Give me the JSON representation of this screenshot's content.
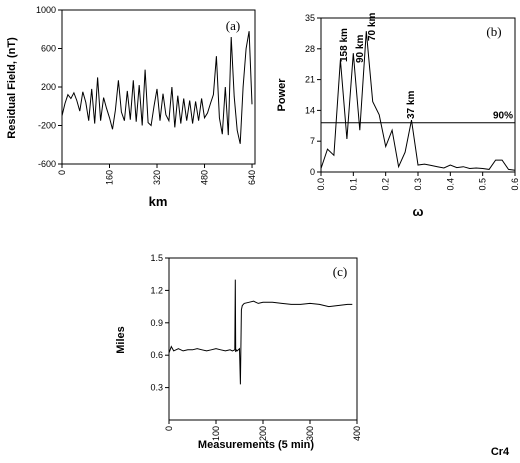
{
  "chart_data": [
    {
      "panel": "(a)",
      "type": "line",
      "xlabel": "km",
      "ylabel": "Residual Field, (nT)",
      "xlim": [
        0,
        650
      ],
      "ylim": [
        -600,
        1000
      ],
      "xticks": [
        "0",
        "160",
        "320",
        "480",
        "640"
      ],
      "yticks": [
        "-600",
        "-200",
        "200",
        "600",
        "1000"
      ],
      "x": [
        0,
        10,
        20,
        30,
        40,
        50,
        60,
        70,
        80,
        90,
        100,
        110,
        120,
        130,
        140,
        150,
        160,
        170,
        180,
        190,
        200,
        210,
        220,
        230,
        240,
        250,
        260,
        270,
        280,
        290,
        300,
        310,
        320,
        330,
        340,
        350,
        360,
        370,
        380,
        390,
        400,
        410,
        420,
        430,
        440,
        450,
        460,
        470,
        480,
        490,
        500,
        510,
        520,
        530,
        540,
        550,
        560,
        570,
        580,
        590,
        600,
        610,
        620,
        630,
        640
      ],
      "y": [
        -100,
        30,
        120,
        80,
        140,
        60,
        -50,
        150,
        40,
        -150,
        180,
        -180,
        300,
        -150,
        90,
        -20,
        -120,
        -240,
        -40,
        270,
        -60,
        -150,
        160,
        -140,
        270,
        -160,
        220,
        -200,
        380,
        -170,
        -200,
        0,
        180,
        -150,
        130,
        -90,
        -150,
        200,
        -220,
        110,
        -180,
        80,
        -150,
        60,
        -180,
        50,
        -150,
        80,
        -120,
        -70,
        30,
        120,
        520,
        -120,
        -290,
        200,
        -300,
        720,
        100,
        -250,
        -390,
        200,
        600,
        780,
        20
      ]
    },
    {
      "panel": "(b)",
      "type": "line",
      "xlabel": "ω",
      "ylabel": "Power",
      "xlim": [
        0,
        0.6
      ],
      "ylim": [
        0,
        35
      ],
      "xticks": [
        "0.0",
        "0.1",
        "0.2",
        "0.3",
        "0.4",
        "0.5",
        "0.6"
      ],
      "yticks": [
        "0",
        "7",
        "14",
        "21",
        "28",
        "35"
      ],
      "x": [
        0,
        0.02,
        0.04,
        0.06,
        0.08,
        0.1,
        0.12,
        0.14,
        0.16,
        0.18,
        0.2,
        0.22,
        0.24,
        0.26,
        0.28,
        0.3,
        0.32,
        0.34,
        0.36,
        0.38,
        0.4,
        0.42,
        0.44,
        0.46,
        0.48,
        0.5,
        0.52,
        0.54,
        0.56,
        0.58,
        0.6
      ],
      "y": [
        0.8,
        5.2,
        3.8,
        25.5,
        7.5,
        27,
        9.5,
        32,
        16,
        13,
        5.8,
        9.5,
        1.2,
        4.5,
        11.8,
        1.6,
        1.8,
        1.5,
        1.2,
        0.9,
        1.6,
        1,
        1.2,
        0.8,
        0.9,
        0.8,
        0.6,
        2.7,
        2.7,
        0.6,
        0.4
      ],
      "threshold": {
        "label": "90%",
        "value": 11.2
      },
      "annotations": [
        "158 km",
        "90 km",
        "70 km",
        "37 km"
      ]
    },
    {
      "panel": "(c)",
      "type": "line",
      "xlabel": "Measurements (5 min)",
      "ylabel": "Miles",
      "xlim": [
        0,
        400
      ],
      "ylim": [
        0,
        1.5
      ],
      "xticks": [
        "0",
        "100",
        "200",
        "300",
        "400"
      ],
      "yticks": [
        "0.3",
        "0.6",
        "0.9",
        "1.2",
        "1.5"
      ],
      "x": [
        0,
        5,
        10,
        20,
        30,
        40,
        50,
        60,
        70,
        80,
        90,
        100,
        110,
        120,
        130,
        135,
        140,
        141,
        142,
        143,
        145,
        150,
        152,
        154,
        156,
        158,
        160,
        170,
        180,
        190,
        200,
        220,
        240,
        260,
        280,
        300,
        320,
        340,
        360,
        380,
        390
      ],
      "y": [
        0.62,
        0.68,
        0.64,
        0.66,
        0.64,
        0.65,
        0.65,
        0.66,
        0.65,
        0.64,
        0.65,
        0.66,
        0.65,
        0.64,
        0.65,
        0.64,
        0.65,
        1.3,
        0.63,
        0.65,
        0.64,
        0.66,
        0.33,
        1.02,
        1.06,
        1.07,
        1.08,
        1.09,
        1.1,
        1.08,
        1.09,
        1.09,
        1.08,
        1.07,
        1.07,
        1.08,
        1.07,
        1.05,
        1.06,
        1.07,
        1.07
      ]
    }
  ],
  "figure_label": "Cr4"
}
